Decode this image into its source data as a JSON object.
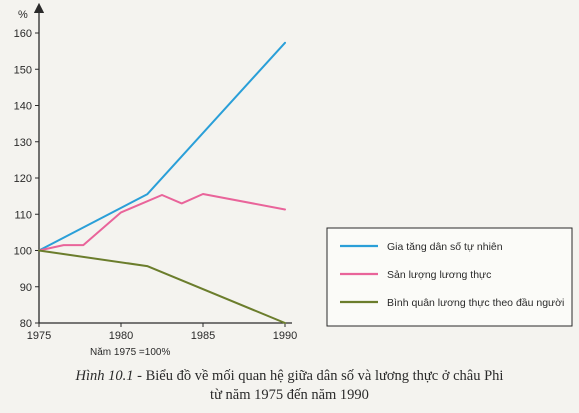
{
  "chart_data": {
    "type": "line",
    "ylabel": "%",
    "note": "Năm 1975 =100%",
    "x_ticks": [
      1975,
      1980,
      1985,
      1990
    ],
    "y_ticks": [
      80,
      90,
      100,
      110,
      120,
      130,
      140,
      150,
      160
    ],
    "xlim": [
      1975,
      1990
    ],
    "ylim": [
      80,
      165
    ],
    "grid": false,
    "legend_position": "right",
    "series": [
      {
        "name": "Gia tăng dân số tự nhiên",
        "color": "#2a9fd8",
        "x": [
          1975,
          1981.6,
          1990
        ],
        "y": [
          100,
          115.5,
          157.3
        ]
      },
      {
        "name": "Sản lượng lương thực",
        "color": "#e9649a",
        "x": [
          1975,
          1976.5,
          1977.7,
          1980,
          1982.5,
          1983.7,
          1985,
          1990
        ],
        "y": [
          100,
          101.5,
          101.5,
          110.5,
          115.3,
          113,
          115.6,
          111.3
        ]
      },
      {
        "name": "Bình quân lương thực theo đầu người",
        "color": "#6b7d2c",
        "x": [
          1975,
          1981.6,
          1990
        ],
        "y": [
          100,
          95.7,
          80
        ]
      }
    ]
  },
  "caption": {
    "label": "Hình 10.1",
    "line1": " - Biểu đồ về mối quan hệ giữa dân số và lương thực ở châu Phi",
    "line2": "từ năm 1975 đến năm 1990"
  }
}
